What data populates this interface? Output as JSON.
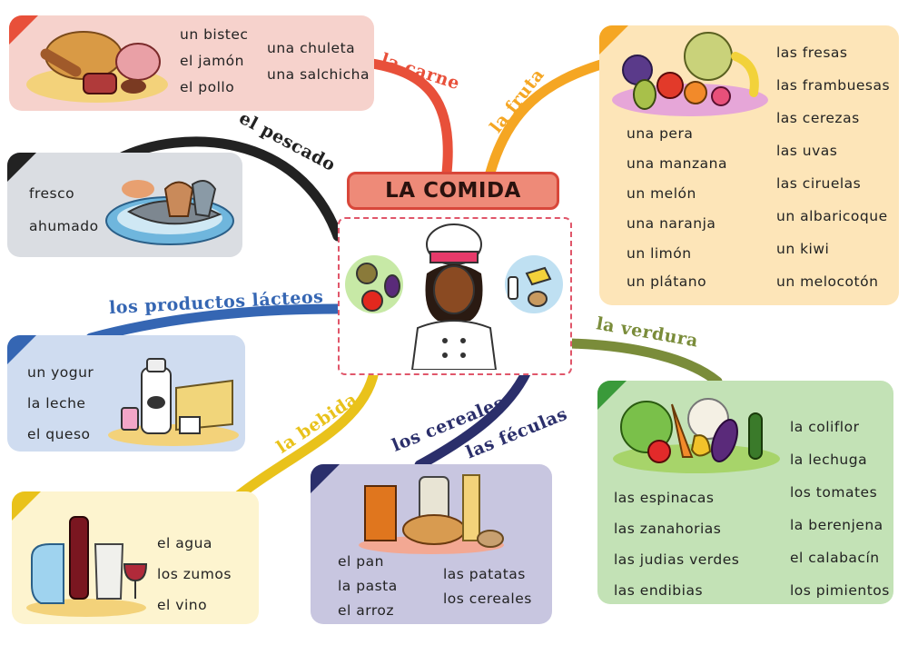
{
  "title": "LA COMIDA",
  "colors": {
    "carne": "#e8503a",
    "fruta": "#f5a623",
    "pescado": "#222222",
    "lacteos": "#3566b3",
    "bebida": "#e9c21b",
    "cereales": "#2b2f6b",
    "verdura": "#7a8c3a"
  },
  "icons": [
    "meat-plate-icon",
    "fish-plate-icon",
    "dairy-icon",
    "drinks-icon",
    "bread-pasta-icon",
    "fruit-basket-icon",
    "vegetables-icon",
    "chef-icon"
  ],
  "categories": {
    "carne": {
      "label": "la carne",
      "col1": [
        "un bistec",
        "el jamón",
        "el pollo"
      ],
      "col2": [
        "una chuleta",
        "una salchicha"
      ]
    },
    "pescado": {
      "label": "el pescado",
      "items": [
        "fresco",
        "ahumado"
      ]
    },
    "lacteos": {
      "label": "los productos  lácteos",
      "items": [
        "un yogur",
        "la leche",
        "el queso"
      ]
    },
    "bebida": {
      "label": "la bebida",
      "items": [
        "el agua",
        "los zumos",
        "el vino"
      ]
    },
    "cereales": {
      "label1": "los cereales",
      "label2": "las féculas",
      "col1": [
        "el pan",
        "la pasta",
        "el arroz"
      ],
      "col2": [
        "las patatas",
        "los cereales"
      ]
    },
    "fruta": {
      "label": "la fruta",
      "col1": [
        "una pera",
        "una manzana",
        "un melón",
        "una naranja",
        "un limón",
        "un plátano"
      ],
      "col2": [
        "las fresas",
        "las frambuesas",
        "las cerezas",
        "las uvas",
        "las ciruelas",
        "un albaricoque",
        "un kiwi",
        "un melocotón"
      ]
    },
    "verdura": {
      "label": "la verdura",
      "col1": [
        "las espinacas",
        "las zanahorias",
        "las judias verdes",
        "las endibias"
      ],
      "col2": [
        "la coliflor",
        "la lechuga",
        "los tomates",
        "la berenjena",
        "el calabacín",
        "los pimientos"
      ]
    }
  }
}
